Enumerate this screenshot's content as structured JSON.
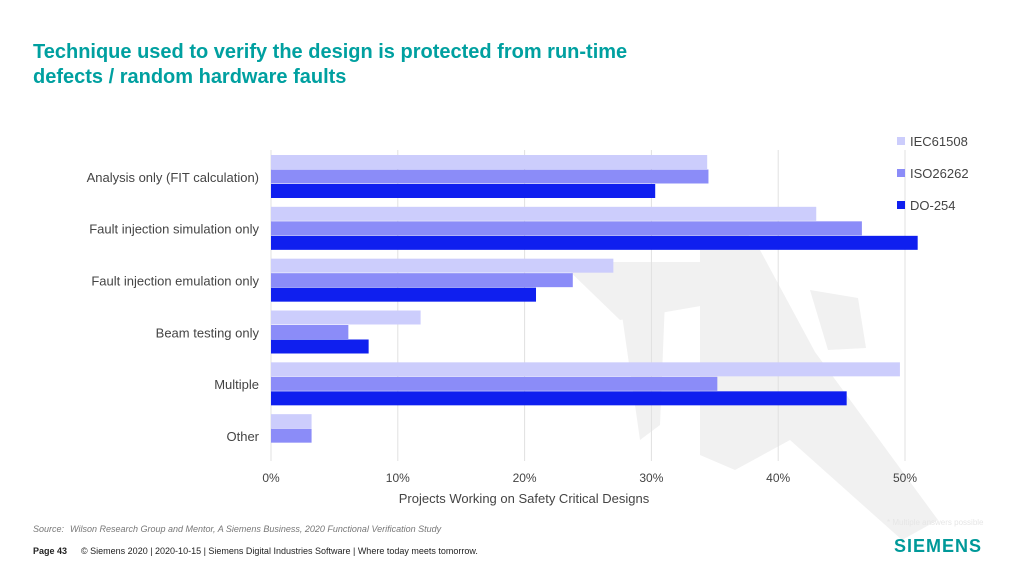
{
  "colors": {
    "title": "#00a0a0",
    "brand": "#009999",
    "series": [
      "#cccdfc",
      "#8b8cf8",
      "#0f1fef"
    ],
    "grid": "#e0e0e0",
    "text": "#444444",
    "watermark": "#f1f1f1"
  },
  "title_lines": [
    "Technique used to verify the design is protected from run-time",
    "defects / random hardware faults"
  ],
  "chart_data": {
    "type": "bar",
    "orientation": "horizontal",
    "categories": [
      "Analysis only (FIT calculation)",
      "Fault injection simulation only",
      "Fault injection emulation only",
      "Beam testing only",
      "Multiple",
      "Other"
    ],
    "series": [
      {
        "name": "IEC61508",
        "values": [
          34.4,
          43.0,
          27.0,
          11.8,
          49.6,
          3.2
        ]
      },
      {
        "name": "ISO26262",
        "values": [
          34.5,
          46.6,
          23.8,
          6.1,
          35.2,
          3.2
        ]
      },
      {
        "name": "DO-254",
        "values": [
          30.3,
          51.0,
          20.9,
          7.7,
          45.4,
          0
        ]
      }
    ],
    "xlabel": "Projects Working on Safety Critical Designs",
    "xlim": [
      0,
      50
    ],
    "xticks": [
      "0%",
      "10%",
      "20%",
      "30%",
      "40%",
      "50%"
    ],
    "grid": true,
    "legend_position": "top-right"
  },
  "footer": {
    "source_label": "Source:",
    "source_text": "Wilson Research Group and Mentor, A Siemens Business, 2020 Functional Verification Study",
    "page_label": "Page 43",
    "copyright": "© Siemens 2020 | 2020-10-15 | Siemens Digital Industries Software | Where today meets tomorrow."
  },
  "note": "* Multiple answers possible",
  "brand": "SIEMENS"
}
